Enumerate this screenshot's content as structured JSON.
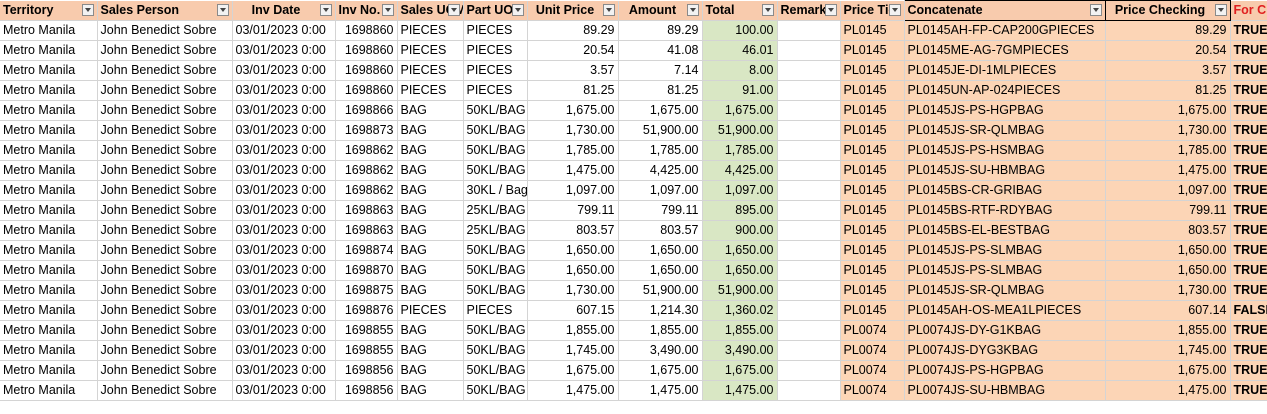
{
  "headers": [
    "Territory",
    "Sales Person",
    "Inv Date",
    "Inv No.",
    "Sales UOM",
    "Part UOM",
    "Unit Price",
    "Amount",
    "Total",
    "Remarks",
    "Price Tier",
    "Concatenate",
    "Price Checking",
    "For Checking"
  ],
  "rows": [
    [
      "Metro Manila",
      "John Benedict Sobre",
      "03/01/2023 0:00",
      "1698860",
      "PIECES",
      "PIECES",
      "89.29",
      "89.29",
      "100.00",
      "",
      "PL0145",
      "PL0145AH-FP-CAP200GPIECES",
      "89.29",
      "TRUE"
    ],
    [
      "Metro Manila",
      "John Benedict Sobre",
      "03/01/2023 0:00",
      "1698860",
      "PIECES",
      "PIECES",
      "20.54",
      "41.08",
      "46.01",
      "",
      "PL0145",
      "PL0145ME-AG-7GMPIECES",
      "20.54",
      "TRUE"
    ],
    [
      "Metro Manila",
      "John Benedict Sobre",
      "03/01/2023 0:00",
      "1698860",
      "PIECES",
      "PIECES",
      "3.57",
      "7.14",
      "8.00",
      "",
      "PL0145",
      "PL0145JE-DI-1MLPIECES",
      "3.57",
      "TRUE"
    ],
    [
      "Metro Manila",
      "John Benedict Sobre",
      "03/01/2023 0:00",
      "1698860",
      "PIECES",
      "PIECES",
      "81.25",
      "81.25",
      "91.00",
      "",
      "PL0145",
      "PL0145UN-AP-024PIECES",
      "81.25",
      "TRUE"
    ],
    [
      "Metro Manila",
      "John Benedict Sobre",
      "03/01/2023 0:00",
      "1698866",
      "BAG",
      "50KL/BAG",
      "1,675.00",
      "1,675.00",
      "1,675.00",
      "",
      "PL0145",
      "PL0145JS-PS-HGPBAG",
      "1,675.00",
      "TRUE"
    ],
    [
      "Metro Manila",
      "John Benedict Sobre",
      "03/01/2023 0:00",
      "1698873",
      "BAG",
      "50KL/BAG",
      "1,730.00",
      "51,900.00",
      "51,900.00",
      "",
      "PL0145",
      "PL0145JS-SR-QLMBAG",
      "1,730.00",
      "TRUE"
    ],
    [
      "Metro Manila",
      "John Benedict Sobre",
      "03/01/2023 0:00",
      "1698862",
      "BAG",
      "50KL/BAG",
      "1,785.00",
      "1,785.00",
      "1,785.00",
      "",
      "PL0145",
      "PL0145JS-PS-HSMBAG",
      "1,785.00",
      "TRUE"
    ],
    [
      "Metro Manila",
      "John Benedict Sobre",
      "03/01/2023 0:00",
      "1698862",
      "BAG",
      "50KL/BAG",
      "1,475.00",
      "4,425.00",
      "4,425.00",
      "",
      "PL0145",
      "PL0145JS-SU-HBMBAG",
      "1,475.00",
      "TRUE"
    ],
    [
      "Metro Manila",
      "John Benedict Sobre",
      "03/01/2023 0:00",
      "1698862",
      "BAG",
      "30KL / Bag",
      "1,097.00",
      "1,097.00",
      "1,097.00",
      "",
      "PL0145",
      "PL0145BS-CR-GRIBAG",
      "1,097.00",
      "TRUE"
    ],
    [
      "Metro Manila",
      "John Benedict Sobre",
      "03/01/2023 0:00",
      "1698863",
      "BAG",
      "25KL/BAG",
      "799.11",
      "799.11",
      "895.00",
      "",
      "PL0145",
      "PL0145BS-RTF-RDYBAG",
      "799.11",
      "TRUE"
    ],
    [
      "Metro Manila",
      "John Benedict Sobre",
      "03/01/2023 0:00",
      "1698863",
      "BAG",
      "25KL/BAG",
      "803.57",
      "803.57",
      "900.00",
      "",
      "PL0145",
      "PL0145BS-EL-BESTBAG",
      "803.57",
      "TRUE"
    ],
    [
      "Metro Manila",
      "John Benedict Sobre",
      "03/01/2023 0:00",
      "1698874",
      "BAG",
      "50KL/BAG",
      "1,650.00",
      "1,650.00",
      "1,650.00",
      "",
      "PL0145",
      "PL0145JS-PS-SLMBAG",
      "1,650.00",
      "TRUE"
    ],
    [
      "Metro Manila",
      "John Benedict Sobre",
      "03/01/2023 0:00",
      "1698870",
      "BAG",
      "50KL/BAG",
      "1,650.00",
      "1,650.00",
      "1,650.00",
      "",
      "PL0145",
      "PL0145JS-PS-SLMBAG",
      "1,650.00",
      "TRUE"
    ],
    [
      "Metro Manila",
      "John Benedict Sobre",
      "03/01/2023 0:00",
      "1698875",
      "BAG",
      "50KL/BAG",
      "1,730.00",
      "51,900.00",
      "51,900.00",
      "",
      "PL0145",
      "PL0145JS-SR-QLMBAG",
      "1,730.00",
      "TRUE"
    ],
    [
      "Metro Manila",
      "John Benedict Sobre",
      "03/01/2023 0:00",
      "1698876",
      "PIECES",
      "PIECES",
      "607.15",
      "1,214.30",
      "1,360.02",
      "",
      "PL0145",
      "PL0145AH-OS-MEA1LPIECES",
      "607.14",
      "FALSE"
    ],
    [
      "Metro Manila",
      "John Benedict Sobre",
      "03/01/2023 0:00",
      "1698855",
      "BAG",
      "50KL/BAG",
      "1,855.00",
      "1,855.00",
      "1,855.00",
      "",
      "PL0074",
      "PL0074JS-DY-G1KBAG",
      "1,855.00",
      "TRUE"
    ],
    [
      "Metro Manila",
      "John Benedict Sobre",
      "03/01/2023 0:00",
      "1698855",
      "BAG",
      "50KL/BAG",
      "1,745.00",
      "3,490.00",
      "3,490.00",
      "",
      "PL0074",
      "PL0074JS-DYG3KBAG",
      "1,745.00",
      "TRUE"
    ],
    [
      "Metro Manila",
      "John Benedict Sobre",
      "03/01/2023 0:00",
      "1698856",
      "BAG",
      "50KL/BAG",
      "1,675.00",
      "1,675.00",
      "1,675.00",
      "",
      "PL0074",
      "PL0074JS-PS-HGPBAG",
      "1,675.00",
      "TRUE"
    ],
    [
      "Metro Manila",
      "John Benedict Sobre",
      "03/01/2023 0:00",
      "1698856",
      "BAG",
      "50KL/BAG",
      "1,475.00",
      "1,475.00",
      "1,475.00",
      "",
      "PL0074",
      "PL0074JS-SU-HBMBAG",
      "1,475.00",
      "TRUE"
    ]
  ],
  "colors": {
    "header_bg": "#f8cbad",
    "total_bg": "#d9e7c4",
    "peach_bg": "#fcd5b6",
    "red_header": "#e02020"
  }
}
